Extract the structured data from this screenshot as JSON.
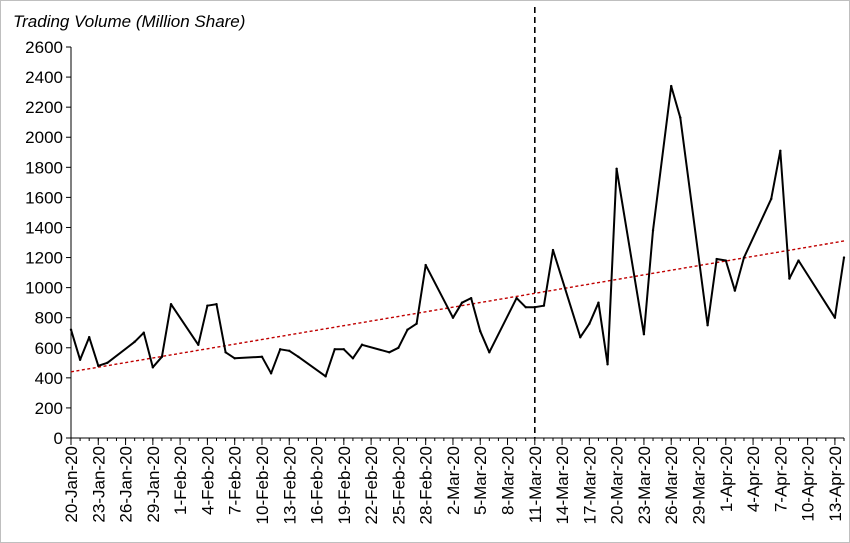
{
  "chart_data": {
    "type": "line",
    "title": "Trading Volume (Million Share)",
    "xlabel": "",
    "ylabel": "",
    "ylim": [
      0,
      2600
    ],
    "yticks": [
      0,
      200,
      400,
      600,
      800,
      1000,
      1200,
      1400,
      1600,
      1800,
      2000,
      2200,
      2400,
      2600
    ],
    "xlim": [
      "2020-01-20",
      "2020-04-14"
    ],
    "x_tick_labels": [
      "20-Jan-20",
      "23-Jan-20",
      "26-Jan-20",
      "29-Jan-20",
      "1-Feb-20",
      "4-Feb-20",
      "7-Feb-20",
      "10-Feb-20",
      "13-Feb-20",
      "16-Feb-20",
      "19-Feb-20",
      "22-Feb-20",
      "25-Feb-20",
      "28-Feb-20",
      "2-Mar-20",
      "5-Mar-20",
      "8-Mar-20",
      "11-Mar-20",
      "14-Mar-20",
      "17-Mar-20",
      "20-Mar-20",
      "23-Mar-20",
      "26-Mar-20",
      "29-Mar-20",
      "1-Apr-20",
      "4-Apr-20",
      "7-Apr-20",
      "10-Apr-20",
      "13-Apr-20"
    ],
    "x_tick_dates": [
      "2020-01-20",
      "2020-01-23",
      "2020-01-26",
      "2020-01-29",
      "2020-02-01",
      "2020-02-04",
      "2020-02-07",
      "2020-02-10",
      "2020-02-13",
      "2020-02-16",
      "2020-02-19",
      "2020-02-22",
      "2020-02-25",
      "2020-02-28",
      "2020-03-02",
      "2020-03-05",
      "2020-03-08",
      "2020-03-11",
      "2020-03-14",
      "2020-03-17",
      "2020-03-20",
      "2020-03-23",
      "2020-03-26",
      "2020-03-29",
      "2020-04-01",
      "2020-04-04",
      "2020-04-07",
      "2020-04-10",
      "2020-04-13"
    ],
    "grid": false,
    "legend": "none",
    "series": [
      {
        "color": "#000000",
        "points": [
          {
            "x": "2020-01-20",
            "y": 720
          },
          {
            "x": "2020-01-21",
            "y": 520
          },
          {
            "x": "2020-01-22",
            "y": 670
          },
          {
            "x": "2020-01-23",
            "y": 480
          },
          {
            "x": "2020-01-24",
            "y": 500
          },
          {
            "x": "2020-01-27",
            "y": 640
          },
          {
            "x": "2020-01-28",
            "y": 700
          },
          {
            "x": "2020-01-29",
            "y": 470
          },
          {
            "x": "2020-01-30",
            "y": 540
          },
          {
            "x": "2020-01-31",
            "y": 890
          },
          {
            "x": "2020-02-03",
            "y": 620
          },
          {
            "x": "2020-02-04",
            "y": 880
          },
          {
            "x": "2020-02-05",
            "y": 890
          },
          {
            "x": "2020-02-06",
            "y": 570
          },
          {
            "x": "2020-02-07",
            "y": 530
          },
          {
            "x": "2020-02-10",
            "y": 540
          },
          {
            "x": "2020-02-11",
            "y": 430
          },
          {
            "x": "2020-02-12",
            "y": 590
          },
          {
            "x": "2020-02-13",
            "y": 580
          },
          {
            "x": "2020-02-14",
            "y": 540
          },
          {
            "x": "2020-02-17",
            "y": 410
          },
          {
            "x": "2020-02-18",
            "y": 590
          },
          {
            "x": "2020-02-19",
            "y": 590
          },
          {
            "x": "2020-02-20",
            "y": 530
          },
          {
            "x": "2020-02-21",
            "y": 620
          },
          {
            "x": "2020-02-24",
            "y": 570
          },
          {
            "x": "2020-02-25",
            "y": 600
          },
          {
            "x": "2020-02-26",
            "y": 720
          },
          {
            "x": "2020-02-27",
            "y": 760
          },
          {
            "x": "2020-02-28",
            "y": 1150
          },
          {
            "x": "2020-03-02",
            "y": 800
          },
          {
            "x": "2020-03-03",
            "y": 900
          },
          {
            "x": "2020-03-04",
            "y": 930
          },
          {
            "x": "2020-03-05",
            "y": 710
          },
          {
            "x": "2020-03-06",
            "y": 570
          },
          {
            "x": "2020-03-09",
            "y": 930
          },
          {
            "x": "2020-03-10",
            "y": 870
          },
          {
            "x": "2020-03-11",
            "y": 870
          },
          {
            "x": "2020-03-12",
            "y": 880
          },
          {
            "x": "2020-03-13",
            "y": 1250
          },
          {
            "x": "2020-03-16",
            "y": 670
          },
          {
            "x": "2020-03-17",
            "y": 760
          },
          {
            "x": "2020-03-18",
            "y": 900
          },
          {
            "x": "2020-03-19",
            "y": 490
          },
          {
            "x": "2020-03-20",
            "y": 1790
          },
          {
            "x": "2020-03-23",
            "y": 690
          },
          {
            "x": "2020-03-24",
            "y": 1380
          },
          {
            "x": "2020-03-26",
            "y": 2340
          },
          {
            "x": "2020-03-27",
            "y": 2130
          },
          {
            "x": "2020-03-30",
            "y": 750
          },
          {
            "x": "2020-03-31",
            "y": 1190
          },
          {
            "x": "2020-04-01",
            "y": 1180
          },
          {
            "x": "2020-04-02",
            "y": 980
          },
          {
            "x": "2020-04-03",
            "y": 1200
          },
          {
            "x": "2020-04-06",
            "y": 1590
          },
          {
            "x": "2020-04-07",
            "y": 1910
          },
          {
            "x": "2020-04-08",
            "y": 1060
          },
          {
            "x": "2020-04-09",
            "y": 1180
          },
          {
            "x": "2020-04-13",
            "y": 800
          },
          {
            "x": "2020-04-14",
            "y": 1200
          }
        ]
      }
    ],
    "trendline": {
      "style": "dotted",
      "color": "#c00000",
      "points": [
        {
          "x": "2020-01-20",
          "y": 440
        },
        {
          "x": "2020-04-14",
          "y": 1310
        }
      ]
    },
    "reference_line": {
      "style": "dashed",
      "color": "#000000",
      "x": "2020-03-11"
    }
  }
}
